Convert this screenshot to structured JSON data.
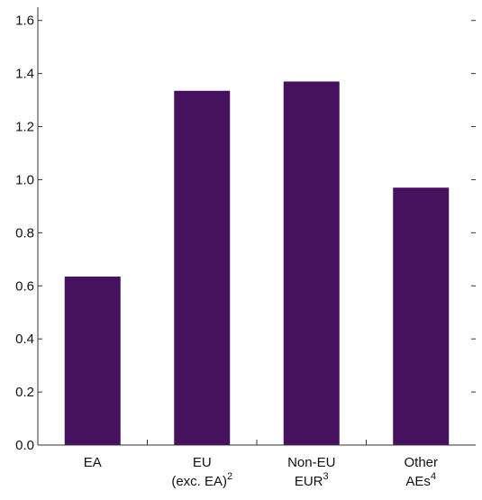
{
  "chart_data": {
    "type": "bar",
    "categories": [
      {
        "lines": [
          "EA"
        ],
        "sup": ""
      },
      {
        "lines": [
          "EU",
          "(exc. EA)"
        ],
        "sup": "2"
      },
      {
        "lines": [
          "Non-EU",
          "EUR"
        ],
        "sup": "3"
      },
      {
        "lines": [
          "Other",
          "AEs"
        ],
        "sup": "4"
      }
    ],
    "values": [
      0.635,
      1.335,
      1.37,
      0.97
    ],
    "yticks": [
      "0.0",
      "0.2",
      "0.4",
      "0.6",
      "0.8",
      "1.0",
      "1.2",
      "1.4",
      "1.6"
    ],
    "ylim": [
      0,
      1.65
    ],
    "grid": false,
    "bar_color": "#46115e"
  }
}
